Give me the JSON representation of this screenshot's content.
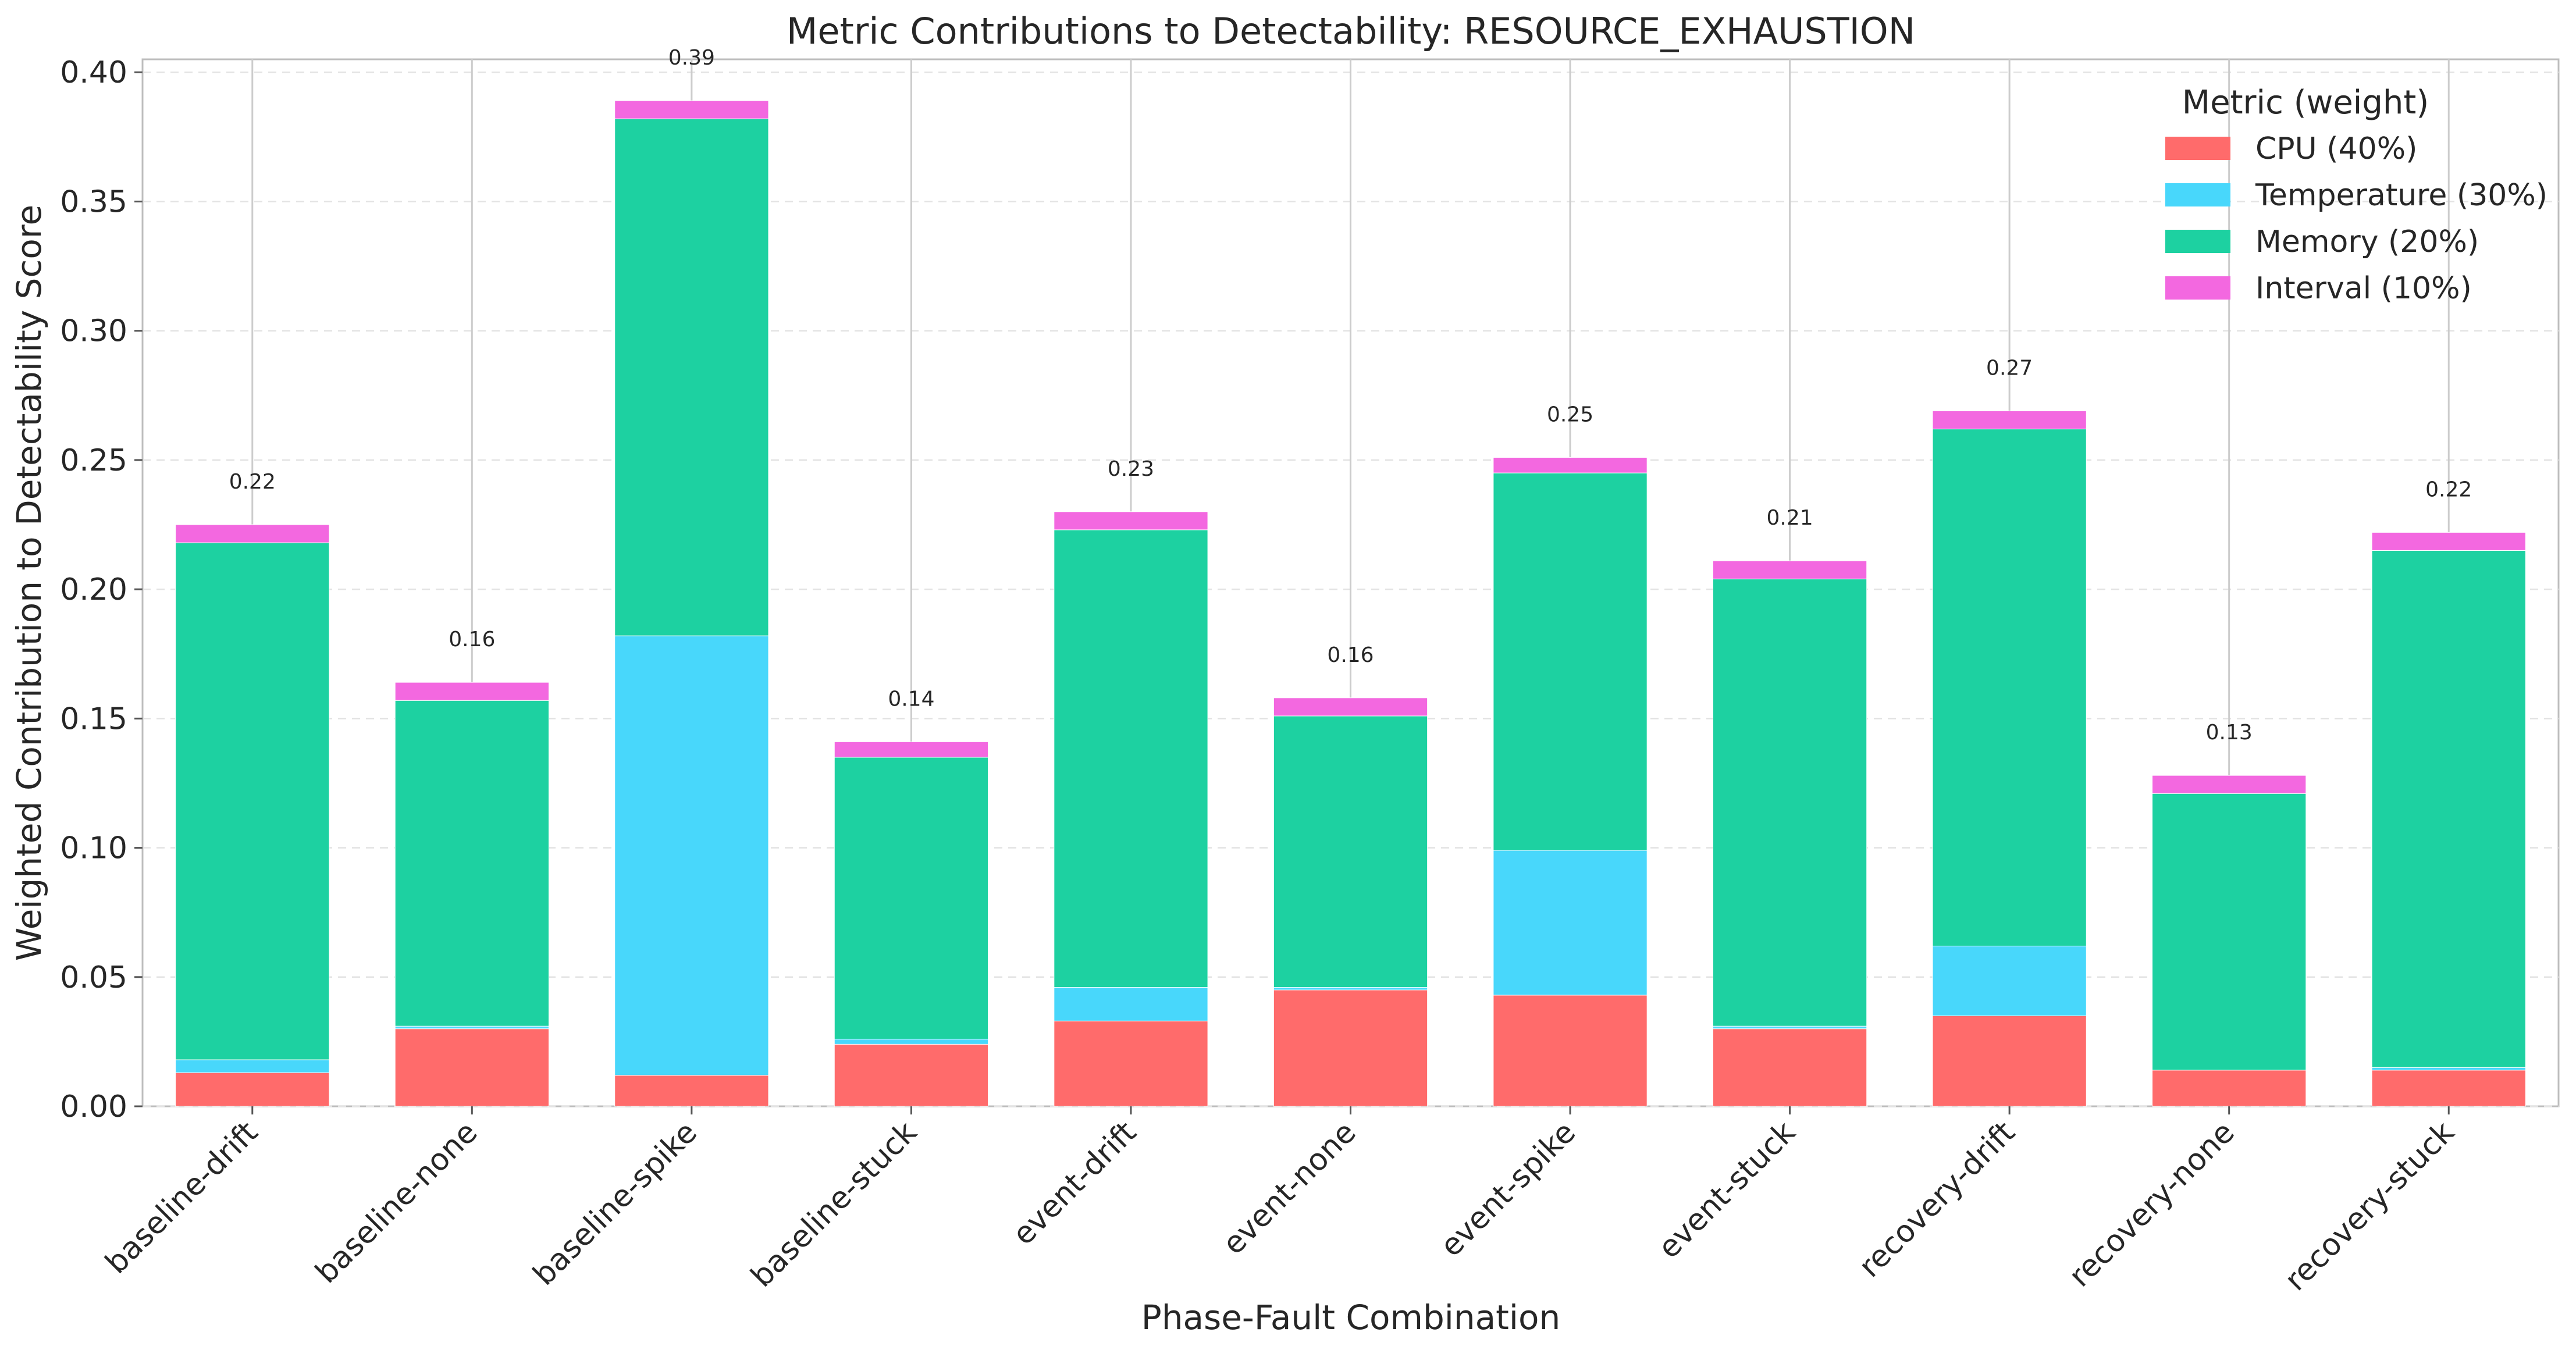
{
  "chart_data": {
    "type": "bar",
    "stacked": true,
    "title": "Metric Contributions to Detectability: RESOURCE_EXHAUSTION",
    "xlabel": "Phase-Fault Combination",
    "ylabel": "Weighted Contribution to Detectability Score",
    "ylim": [
      0,
      0.405
    ],
    "yticks": [
      "0.00",
      "0.05",
      "0.10",
      "0.15",
      "0.20",
      "0.25",
      "0.30",
      "0.35",
      "0.40"
    ],
    "ytick_values": [
      0,
      0.05,
      0.1,
      0.15,
      0.2,
      0.25,
      0.3,
      0.35,
      0.4
    ],
    "grid": true,
    "legend_title": "Metric (weight)",
    "legend_position": "top-right",
    "categories": [
      "baseline-drift",
      "baseline-none",
      "baseline-spike",
      "baseline-stuck",
      "event-drift",
      "event-none",
      "event-spike",
      "event-stuck",
      "recovery-drift",
      "recovery-none",
      "recovery-stuck"
    ],
    "series": [
      {
        "name": "CPU (40%)",
        "color": "#ff6b6b",
        "values": [
          0.013,
          0.03,
          0.012,
          0.024,
          0.033,
          0.045,
          0.043,
          0.03,
          0.035,
          0.014,
          0.014
        ]
      },
      {
        "name": "Temperature (30%)",
        "color": "#48d7fb",
        "values": [
          0.005,
          0.001,
          0.17,
          0.002,
          0.013,
          0.001,
          0.056,
          0.001,
          0.027,
          0.0,
          0.001
        ]
      },
      {
        "name": "Memory (20%)",
        "color": "#1dd1a1",
        "values": [
          0.2,
          0.126,
          0.2,
          0.109,
          0.177,
          0.105,
          0.146,
          0.173,
          0.2,
          0.107,
          0.2
        ]
      },
      {
        "name": "Interval (10%)",
        "color": "#f368e0",
        "values": [
          0.007,
          0.007,
          0.007,
          0.006,
          0.007,
          0.007,
          0.006,
          0.007,
          0.007,
          0.007,
          0.007
        ]
      }
    ],
    "totals": [
      "0.22",
      "0.16",
      "0.39",
      "0.14",
      "0.23",
      "0.16",
      "0.25",
      "0.21",
      "0.27",
      "0.13",
      "0.22"
    ]
  }
}
